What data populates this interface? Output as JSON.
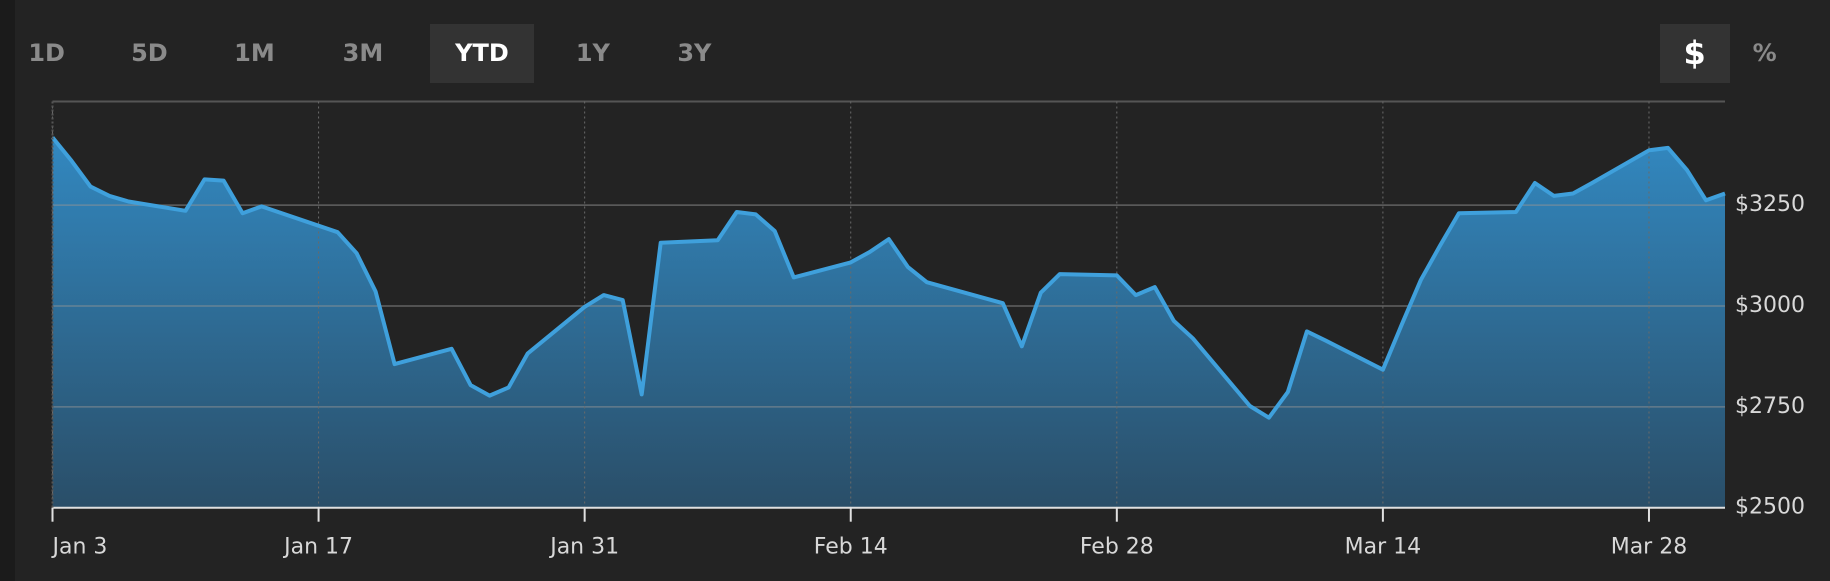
{
  "controls": {
    "ranges": [
      "1D",
      "5D",
      "1M",
      "3M",
      "YTD",
      "1Y",
      "3Y"
    ],
    "active_range": "YTD",
    "units": [
      "$",
      "%"
    ],
    "active_unit": "$"
  },
  "chart_data": {
    "type": "area",
    "color": "#3fa0dc",
    "x": [
      "Jan 3",
      "Jan 4",
      "Jan 5",
      "Jan 6",
      "Jan 7",
      "Jan 10",
      "Jan 11",
      "Jan 12",
      "Jan 13",
      "Jan 14",
      "Jan 18",
      "Jan 19",
      "Jan 20",
      "Jan 21",
      "Jan 24",
      "Jan 25",
      "Jan 26",
      "Jan 27",
      "Jan 28",
      "Jan 31",
      "Feb 1",
      "Feb 2",
      "Feb 3",
      "Feb 4",
      "Feb 7",
      "Feb 8",
      "Feb 9",
      "Feb 10",
      "Feb 11",
      "Feb 14",
      "Feb 15",
      "Feb 16",
      "Feb 17",
      "Feb 18",
      "Feb 22",
      "Feb 23",
      "Feb 24",
      "Feb 25",
      "Feb 28",
      "Mar 1",
      "Mar 2",
      "Mar 3",
      "Mar 4",
      "Mar 7",
      "Mar 8",
      "Mar 9",
      "Mar 10",
      "Mar 11",
      "Mar 14",
      "Mar 15",
      "Mar 16",
      "Mar 17",
      "Mar 18",
      "Mar 21",
      "Mar 22",
      "Mar 23",
      "Mar 24",
      "Mar 25",
      "Mar 28",
      "Mar 29",
      "Mar 30",
      "Mar 31",
      "Apr 1"
    ],
    "values": [
      3418,
      3360,
      3296,
      3273,
      3259,
      3236,
      3314,
      3311,
      3230,
      3247,
      3183,
      3131,
      3036,
      2856,
      2894,
      2804,
      2778,
      2798,
      2882,
      2998,
      3027,
      3015,
      2781,
      3157,
      3163,
      3233,
      3227,
      3186,
      3071,
      3108,
      3134,
      3166,
      3097,
      3059,
      3007,
      2900,
      3033,
      3079,
      3076,
      3027,
      3047,
      2963,
      2920,
      2752,
      2723,
      2787,
      2937,
      2914,
      2842,
      2955,
      3065,
      3149,
      3230,
      3233,
      3305,
      3273,
      3279,
      3305,
      3386,
      3392,
      3337,
      3262,
      3279
    ],
    "xlim": [
      "Jan 3",
      "Apr 1"
    ],
    "xticks": [
      "Jan 3",
      "Jan 17",
      "Jan 31",
      "Feb 14",
      "Feb 28",
      "Mar 14",
      "Mar 28"
    ],
    "ylim": [
      2500,
      3507
    ],
    "yticks": [
      {
        "value": 2500,
        "label": "$2500"
      },
      {
        "value": 2750,
        "label": "$2750"
      },
      {
        "value": 3000,
        "label": "$3000"
      },
      {
        "value": 3250,
        "label": "$3250"
      }
    ],
    "grid": true
  }
}
